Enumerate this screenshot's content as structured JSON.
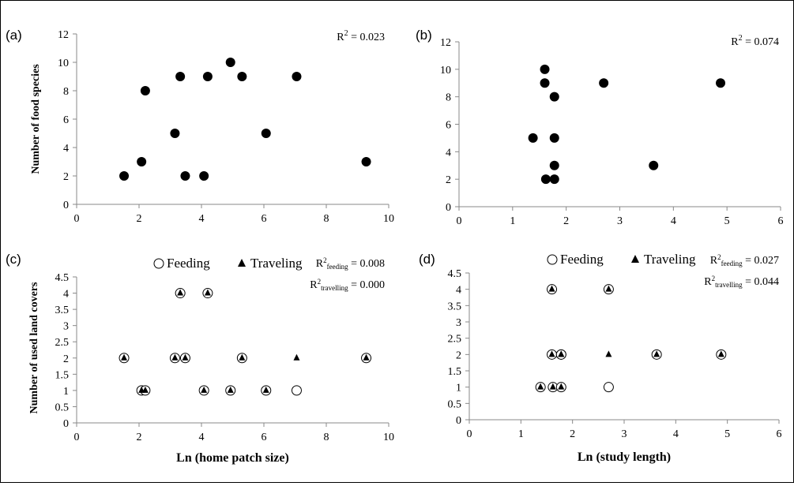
{
  "chart_data": [
    {
      "panel": "(a)",
      "type": "scatter",
      "r2_label": "R",
      "r2_value": " = 0.023",
      "ylabel": "Number of food species",
      "xlabel": "",
      "xlim": [
        0,
        10
      ],
      "ylim": [
        0,
        12
      ],
      "xticks": [
        0,
        2,
        4,
        6,
        8,
        10
      ],
      "yticks": [
        0,
        2,
        4,
        6,
        8,
        10,
        12
      ],
      "series": [
        {
          "marker": "filled-circle",
          "points": [
            [
              1.52,
              2
            ],
            [
              2.08,
              3
            ],
            [
              2.2,
              8
            ],
            [
              3.15,
              5
            ],
            [
              3.32,
              9
            ],
            [
              3.48,
              2
            ],
            [
              4.08,
              2
            ],
            [
              4.2,
              9
            ],
            [
              4.93,
              10
            ],
            [
              5.3,
              9
            ],
            [
              6.07,
              5
            ],
            [
              7.05,
              9
            ],
            [
              9.28,
              3
            ]
          ]
        }
      ]
    },
    {
      "panel": "(b)",
      "type": "scatter",
      "r2_label": "R",
      "r2_value": " = 0.074",
      "ylabel": "",
      "xlabel": "",
      "xlim": [
        0,
        6
      ],
      "ylim": [
        0,
        12
      ],
      "xticks": [
        0,
        1,
        2,
        3,
        4,
        5,
        6
      ],
      "yticks": [
        0,
        2,
        4,
        6,
        8,
        10,
        12
      ],
      "series": [
        {
          "marker": "filled-circle",
          "points": [
            [
              1.38,
              5
            ],
            [
              1.6,
              10
            ],
            [
              1.6,
              9
            ],
            [
              1.62,
              2
            ],
            [
              1.78,
              8
            ],
            [
              1.78,
              5
            ],
            [
              1.78,
              3
            ],
            [
              1.78,
              2
            ],
            [
              2.7,
              9
            ],
            [
              3.63,
              3
            ],
            [
              4.88,
              9
            ]
          ]
        }
      ]
    },
    {
      "panel": "(c)",
      "type": "scatter",
      "legend": [
        "Feeding",
        "Traveling"
      ],
      "r2_lines": [
        {
          "label": "R",
          "sub": "feeding",
          "value": " = 0.008"
        },
        {
          "label": "R",
          "sub": "travelling",
          "value": " = 0.000"
        }
      ],
      "ylabel": "Number of used land covers",
      "xlabel": "Ln (home patch size)",
      "xlim": [
        0,
        10
      ],
      "ylim": [
        0,
        4.5
      ],
      "xticks": [
        0,
        2,
        4,
        6,
        8,
        10
      ],
      "yticks": [
        0,
        0.5,
        1,
        1.5,
        2,
        2.5,
        3,
        3.5,
        4,
        4.5
      ],
      "series": [
        {
          "name": "Feeding",
          "marker": "open-circle",
          "points": [
            [
              1.52,
              2
            ],
            [
              2.08,
              1
            ],
            [
              2.2,
              1
            ],
            [
              3.15,
              2
            ],
            [
              3.32,
              4
            ],
            [
              3.48,
              2
            ],
            [
              4.08,
              1
            ],
            [
              4.2,
              4
            ],
            [
              4.93,
              1
            ],
            [
              5.3,
              2
            ],
            [
              6.07,
              1
            ],
            [
              7.05,
              1
            ],
            [
              9.28,
              2
            ]
          ]
        },
        {
          "name": "Traveling",
          "marker": "filled-triangle",
          "points": [
            [
              1.52,
              2
            ],
            [
              2.08,
              1
            ],
            [
              2.2,
              1
            ],
            [
              3.15,
              2
            ],
            [
              3.32,
              4
            ],
            [
              3.48,
              2
            ],
            [
              4.08,
              1
            ],
            [
              4.2,
              4
            ],
            [
              4.93,
              1
            ],
            [
              5.3,
              2
            ],
            [
              6.07,
              1
            ],
            [
              7.05,
              2
            ],
            [
              9.28,
              2
            ]
          ]
        }
      ]
    },
    {
      "panel": "(d)",
      "type": "scatter",
      "legend": [
        "Feeding",
        "Traveling"
      ],
      "r2_lines": [
        {
          "label": "R",
          "sub": "feeding",
          "value": " = 0.027"
        },
        {
          "label": "R",
          "sub": "travelling",
          "value": " = 0.044"
        }
      ],
      "ylabel": "",
      "xlabel": "Ln (study length)",
      "xlim": [
        0,
        6
      ],
      "ylim": [
        0,
        4.5
      ],
      "xticks": [
        0,
        1,
        2,
        3,
        4,
        5,
        6
      ],
      "yticks": [
        0,
        0.5,
        1,
        1.5,
        2,
        2.5,
        3,
        3.5,
        4,
        4.5
      ],
      "series": [
        {
          "name": "Feeding",
          "marker": "open-circle",
          "points": [
            [
              1.38,
              1
            ],
            [
              1.6,
              4
            ],
            [
              1.6,
              2
            ],
            [
              1.62,
              1
            ],
            [
              1.78,
              2
            ],
            [
              1.78,
              2
            ],
            [
              1.78,
              1
            ],
            [
              2.7,
              4
            ],
            [
              2.7,
              1
            ],
            [
              3.63,
              2
            ],
            [
              4.88,
              2
            ]
          ]
        },
        {
          "name": "Traveling",
          "marker": "filled-triangle",
          "points": [
            [
              1.38,
              1
            ],
            [
              1.6,
              4
            ],
            [
              1.6,
              2
            ],
            [
              1.62,
              1
            ],
            [
              1.78,
              2
            ],
            [
              1.78,
              2
            ],
            [
              1.78,
              1
            ],
            [
              2.7,
              4
            ],
            [
              2.7,
              2
            ],
            [
              3.63,
              2
            ],
            [
              4.88,
              2
            ]
          ]
        }
      ]
    }
  ]
}
